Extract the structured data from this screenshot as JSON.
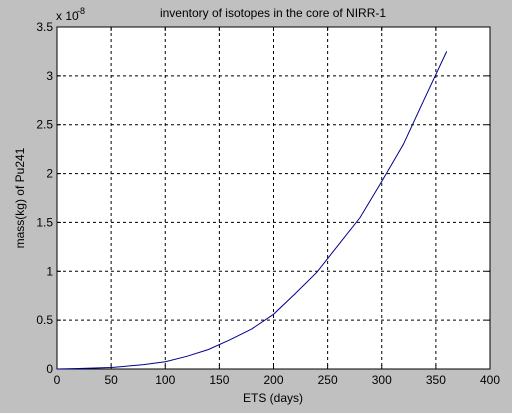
{
  "chart_data": {
    "type": "line",
    "title": "inventory of isotopes in the core of NIRR-1",
    "xlabel": "ETS (days)",
    "ylabel": "mass(kg) of Pu241",
    "y_multiplier": "x 10",
    "y_exponent": "-8",
    "xlim": [
      0,
      400
    ],
    "ylim": [
      0,
      3.5
    ],
    "xticks": [
      0,
      50,
      100,
      150,
      200,
      250,
      300,
      350,
      400
    ],
    "yticks": [
      0,
      0.5,
      1,
      1.5,
      2,
      2.5,
      3,
      3.5
    ],
    "xtick_labels": [
      "0",
      "50",
      "100",
      "150",
      "200",
      "250",
      "300",
      "350",
      "400"
    ],
    "ytick_labels": [
      "0",
      "0.5",
      "1",
      "1.5",
      "2",
      "2.5",
      "3",
      "3.5"
    ],
    "grid": true,
    "series": [
      {
        "color": "#00008b",
        "x": [
          0,
          20,
          50,
          60,
          80,
          100,
          120,
          140,
          160,
          180,
          200,
          220,
          240,
          260,
          280,
          300,
          320,
          340,
          360
        ],
        "y": [
          0,
          0.005,
          0.015,
          0.025,
          0.045,
          0.075,
          0.13,
          0.2,
          0.3,
          0.41,
          0.56,
          0.77,
          0.99,
          1.27,
          1.55,
          1.92,
          2.3,
          2.78,
          3.25
        ]
      }
    ]
  }
}
